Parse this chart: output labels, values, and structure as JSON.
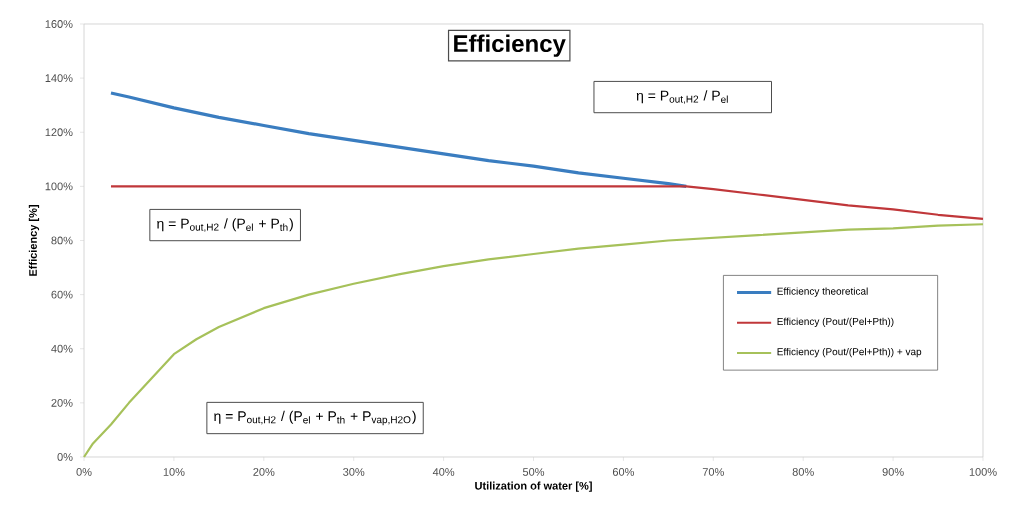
{
  "chart_data": {
    "type": "line",
    "title": "Efficiency",
    "xlabel": "Utilization of water [%]",
    "ylabel": "Efficiency [%]",
    "x": [
      3,
      5,
      10,
      15,
      20,
      25,
      30,
      35,
      40,
      45,
      50,
      55,
      60,
      65,
      67,
      70,
      75,
      80,
      85,
      90,
      95,
      100
    ],
    "series": [
      {
        "name": "Efficiency theoretical",
        "color": "#3a7dc0",
        "values": [
          134.5,
          133,
          129,
          125.5,
          122.5,
          119.5,
          117,
          114.5,
          112,
          109.5,
          107.5,
          105,
          103,
          101,
          100,
          null,
          null,
          null,
          null,
          null,
          null,
          null
        ]
      },
      {
        "name": "Efficiency (Pout/(Pel+Pth))",
        "color": "#c0373a",
        "values": [
          100,
          100,
          100,
          100,
          100,
          100,
          100,
          100,
          100,
          100,
          100,
          100,
          100,
          100,
          100,
          99,
          97,
          95,
          93,
          91.5,
          89.5,
          88
        ]
      },
      {
        "name": "Efficiency (Pout/(Pel+Pth)) + vap",
        "color": "#a6c15a",
        "x": [
          0,
          1,
          3,
          5,
          7.5,
          10,
          12.5,
          15,
          20,
          25,
          30,
          35,
          40,
          45,
          50,
          55,
          60,
          65,
          70,
          75,
          80,
          85,
          90,
          95,
          100
        ],
        "values": [
          0,
          5,
          12,
          20,
          29,
          38,
          43.5,
          48,
          55,
          60,
          64,
          67.5,
          70.5,
          73,
          75,
          77,
          78.5,
          80,
          81,
          82,
          83,
          84,
          84.5,
          85.5,
          86
        ]
      }
    ],
    "xlim": [
      0,
      100
    ],
    "ylim": [
      0,
      160
    ],
    "xticks": [
      {
        "value": 0,
        "label": "0%"
      },
      {
        "value": 10,
        "label": "10%"
      },
      {
        "value": 20,
        "label": "20%"
      },
      {
        "value": 30,
        "label": "30%"
      },
      {
        "value": 40,
        "label": "40%"
      },
      {
        "value": 50,
        "label": "50%"
      },
      {
        "value": 60,
        "label": "60%"
      },
      {
        "value": 70,
        "label": "70%"
      },
      {
        "value": 80,
        "label": "80%"
      },
      {
        "value": 90,
        "label": "90%"
      },
      {
        "value": 100,
        "label": "100%"
      }
    ],
    "yticks": [
      {
        "value": 0,
        "label": "0%"
      },
      {
        "value": 20,
        "label": "20%"
      },
      {
        "value": 40,
        "label": "40%"
      },
      {
        "value": 60,
        "label": "60%"
      },
      {
        "value": 80,
        "label": "80%"
      },
      {
        "value": 100,
        "label": "100%"
      },
      {
        "value": 120,
        "label": "120%"
      },
      {
        "value": 140,
        "label": "140%"
      },
      {
        "value": 160,
        "label": "160%"
      }
    ],
    "annotations": [
      "η = P$_{out,H2}$ / P$_{el}$",
      "η = P$_{out,H2}$ / (P$_{el}$ + P$_{th}$)",
      "η = P$_{out,H2}$ / (P$_{el}$ + P$_{th}$ + P$_{vap,H2O}$)"
    ],
    "legend": "right",
    "grid": false,
    "marker": "none",
    "line_style": "solid"
  }
}
